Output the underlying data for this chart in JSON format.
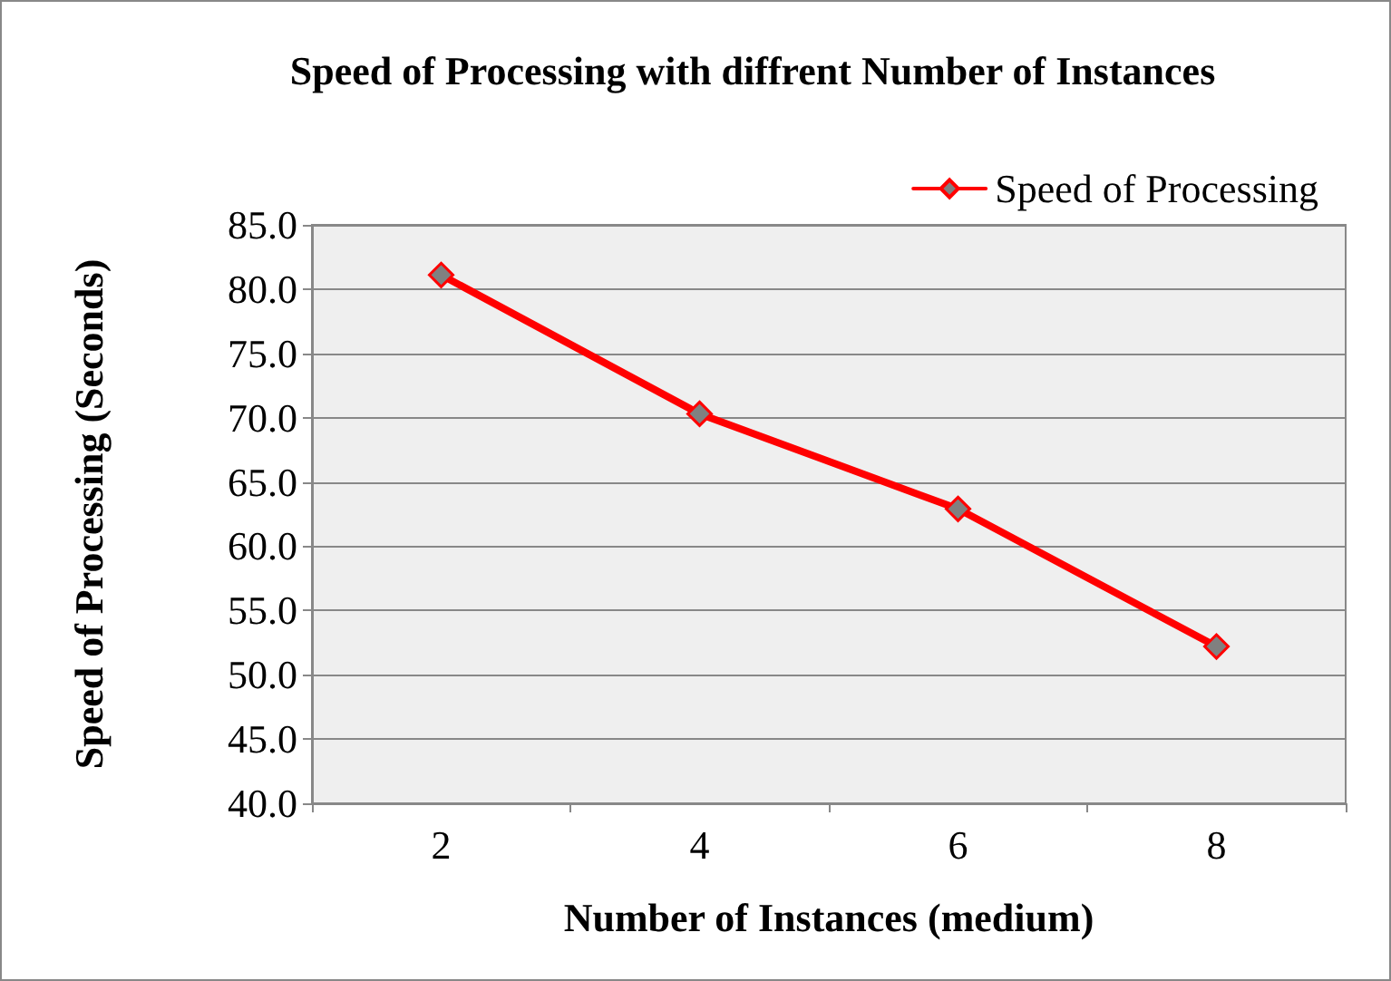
{
  "chart_data": {
    "type": "line",
    "title": "Speed of Processing with diffrent Number of Instances",
    "xlabel": "Number of Instances (medium)",
    "ylabel": "Speed of Processing (Seconds)",
    "categories": [
      "2",
      "4",
      "6",
      "8"
    ],
    "series": [
      {
        "name": "Speed of Processing",
        "color": "#ff0000",
        "values": [
          81.1,
          70.3,
          62.9,
          52.2
        ]
      }
    ],
    "ylim": [
      40,
      85
    ],
    "yticks": [
      {
        "value": 40,
        "label": "40.0"
      },
      {
        "value": 45,
        "label": "45.0"
      },
      {
        "value": 50,
        "label": "50.0"
      },
      {
        "value": 55,
        "label": "55.0"
      },
      {
        "value": 60,
        "label": "60.0"
      },
      {
        "value": 65,
        "label": "65.0"
      },
      {
        "value": 70,
        "label": "70.0"
      },
      {
        "value": 75,
        "label": "75.0"
      },
      {
        "value": 80,
        "label": "80.0"
      },
      {
        "value": 85,
        "label": "85.0"
      }
    ],
    "grid": "y",
    "legend": "top right",
    "marker": "diamond",
    "line_style": "solid"
  }
}
